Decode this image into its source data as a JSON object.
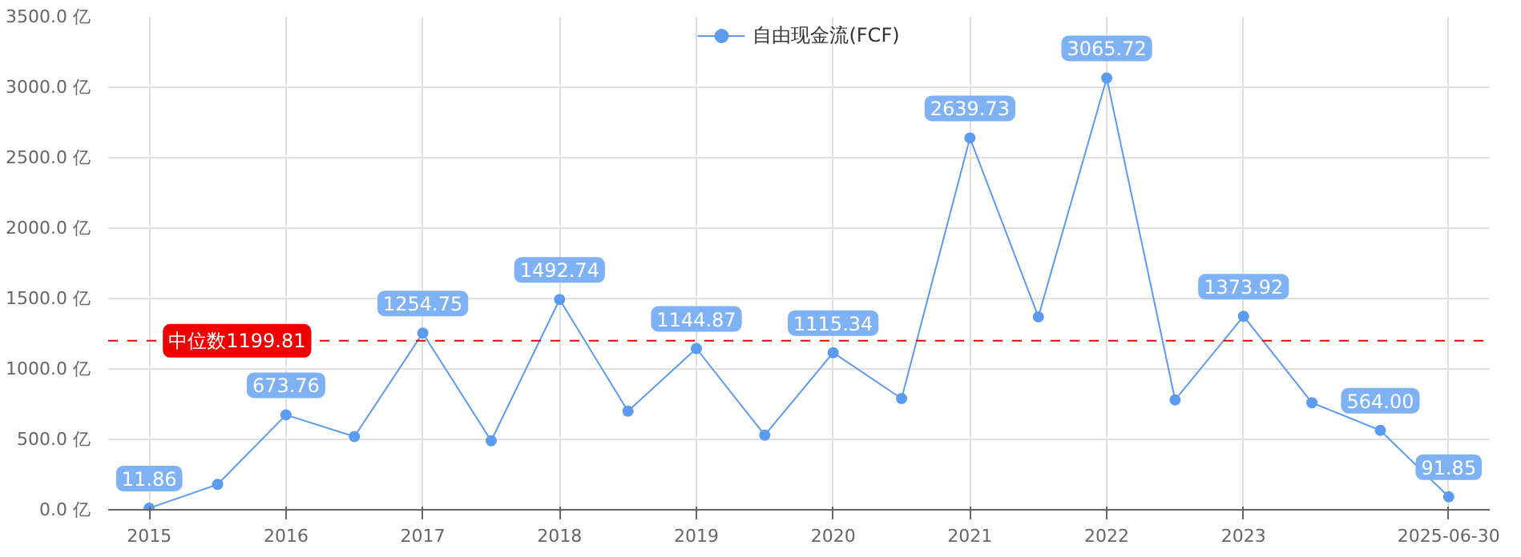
{
  "chart_data": {
    "type": "line",
    "categories": [
      "2015",
      null,
      "2016",
      null,
      "2017",
      null,
      "2018",
      null,
      "2019",
      null,
      "2020",
      null,
      "2021",
      null,
      "2022",
      null,
      "2023",
      null,
      null,
      "2025-06-30"
    ],
    "series": [
      {
        "name": "自由现金流(FCF)",
        "color": "#5b9bf0",
        "values": [
          11.86,
          180,
          673.76,
          520,
          1254.75,
          490,
          1492.74,
          700,
          1144.87,
          530,
          1115.34,
          790,
          2639.73,
          1370,
          3065.72,
          780,
          1373.92,
          760,
          564.0,
          91.85
        ],
        "value_labels": [
          "11.86",
          null,
          "673.76",
          null,
          "1254.75",
          null,
          "1492.74",
          null,
          "1144.87",
          null,
          "1115.34",
          null,
          "2639.73",
          null,
          "3065.72",
          null,
          "1373.92",
          null,
          "564.00",
          "91.85"
        ]
      }
    ],
    "ylim": [
      0,
      3500
    ],
    "yticks": [
      {
        "value": 0,
        "label": "0.0 亿"
      },
      {
        "value": 500,
        "label": "500.0 亿"
      },
      {
        "value": 1000,
        "label": "1000.0 亿"
      },
      {
        "value": 1500,
        "label": "1500.0 亿"
      },
      {
        "value": 2000,
        "label": "2000.0 亿"
      },
      {
        "value": 2500,
        "label": "2500.0 亿"
      },
      {
        "value": 3000,
        "label": "3000.0 亿"
      },
      {
        "value": 3500,
        "label": "3500.0 亿"
      }
    ],
    "ref_lines": [
      {
        "axis": "y",
        "value": 1199.81,
        "label": "中位数1199.81",
        "color": "#ee0000",
        "line_style": "dashed"
      }
    ],
    "grid": true,
    "legend": "top",
    "marker": "circle",
    "line_style": "solid"
  }
}
